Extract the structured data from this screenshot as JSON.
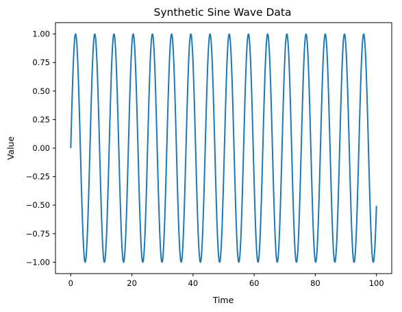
{
  "chart_data": {
    "type": "line",
    "title": "Synthetic Sine Wave Data",
    "xlabel": "Time",
    "ylabel": "Value",
    "xlim": [
      -5,
      105
    ],
    "ylim": [
      -1.1,
      1.1
    ],
    "xticks": [
      0,
      20,
      40,
      60,
      80,
      100
    ],
    "yticks": [
      -1.0,
      -0.75,
      -0.5,
      -0.25,
      0.0,
      0.25,
      0.5,
      0.75,
      1.0
    ],
    "xtick_labels": [
      "0",
      "20",
      "40",
      "60",
      "80",
      "100"
    ],
    "ytick_labels": [
      "−1.00",
      "−0.75",
      "−0.50",
      "−0.25",
      "0.00",
      "0.25",
      "0.50",
      "0.75",
      "1.00"
    ],
    "grid": false,
    "series": [
      {
        "function": "sin",
        "x_start": 0,
        "x_end": 100,
        "color": "#1f77b4"
      }
    ]
  }
}
